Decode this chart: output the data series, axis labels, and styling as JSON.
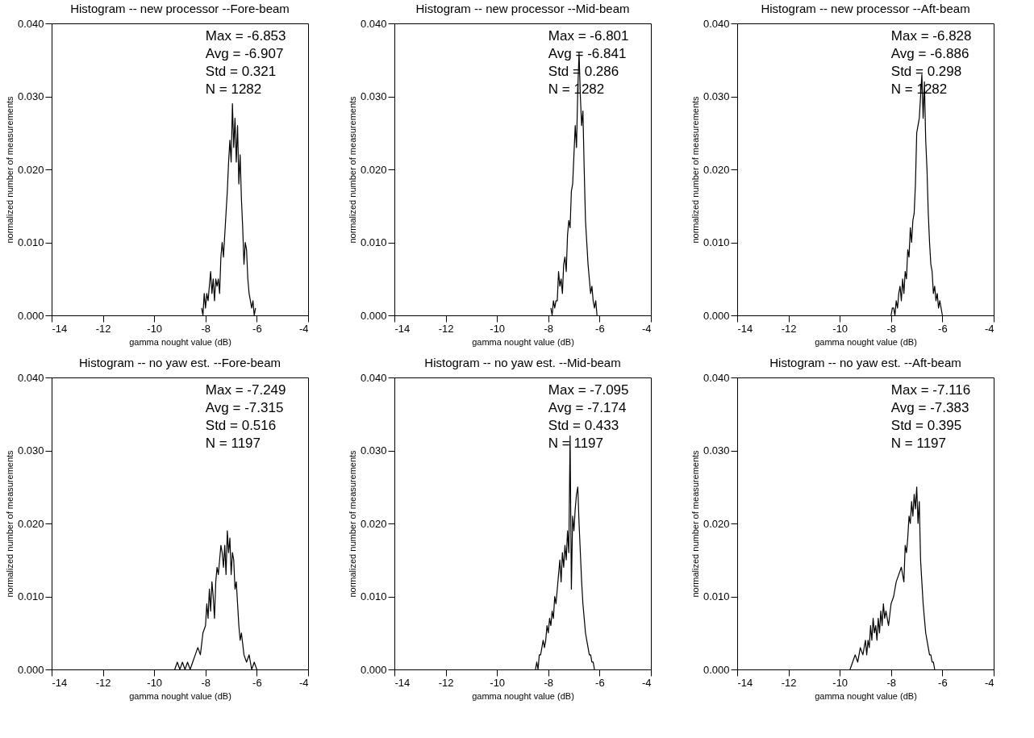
{
  "chart_data": [
    {
      "type": "line",
      "title": "Histogram -- new processor --Fore-beam",
      "xlabel": "gamma nought value (dB)",
      "ylabel": "normalized number of measurements",
      "annotations": [
        "Max =    -6.853",
        "Avg =    -6.907",
        "Std =     0.321",
        "N    =   1282"
      ],
      "xlim": [
        -14,
        -4
      ],
      "xticks": [
        -14,
        -12,
        -10,
        -8,
        -6,
        -4
      ],
      "ylim": [
        0,
        0.04
      ],
      "yticks": [
        {
          "value": 0,
          "label": "0.000"
        },
        {
          "value": 0.01,
          "label": "0.010"
        },
        {
          "value": 0.02,
          "label": "0.020"
        },
        {
          "value": 0.03,
          "label": "0.030"
        },
        {
          "value": 0.04,
          "label": "0.040"
        }
      ],
      "grid": false,
      "line_style": "solid",
      "marker": "none",
      "series": [
        {
          "color": "#000000",
          "x": [
            -8.15,
            -8.1,
            -8.05,
            -8.0,
            -7.95,
            -7.9,
            -7.85,
            -7.8,
            -7.75,
            -7.7,
            -7.65,
            -7.6,
            -7.55,
            -7.5,
            -7.45,
            -7.4,
            -7.35,
            -7.3,
            -7.25,
            -7.2,
            -7.15,
            -7.1,
            -7.05,
            -7.0,
            -6.95,
            -6.9,
            -6.85,
            -6.8,
            -6.75,
            -6.7,
            -6.65,
            -6.6,
            -6.55,
            -6.5,
            -6.45,
            -6.4,
            -6.35,
            -6.3,
            -6.25,
            -6.2,
            -6.15,
            -6.1,
            -6.05
          ],
          "values": [
            0.001,
            0.0,
            0.003,
            0.001,
            0.003,
            0.002,
            0.004,
            0.006,
            0.003,
            0.005,
            0.002,
            0.005,
            0.004,
            0.005,
            0.003,
            0.008,
            0.01,
            0.008,
            0.011,
            0.014,
            0.017,
            0.021,
            0.024,
            0.021,
            0.029,
            0.023,
            0.027,
            0.021,
            0.026,
            0.018,
            0.022,
            0.016,
            0.012,
            0.007,
            0.01,
            0.009,
            0.005,
            0.003,
            0.002,
            0.001,
            0.002,
            0.0,
            0.001
          ]
        }
      ]
    },
    {
      "type": "line",
      "title": "Histogram -- new processor --Mid-beam",
      "xlabel": "gamma nought value (dB)",
      "ylabel": "normalized number of measurements",
      "annotations": [
        "Max =    -6.801",
        "Avg =    -6.841",
        "Std =     0.286",
        "N    =   1282"
      ],
      "xlim": [
        -14,
        -4
      ],
      "xticks": [
        -14,
        -12,
        -10,
        -8,
        -6,
        -4
      ],
      "ylim": [
        0,
        0.04
      ],
      "yticks": [
        {
          "value": 0,
          "label": "0.000"
        },
        {
          "value": 0.01,
          "label": "0.010"
        },
        {
          "value": 0.02,
          "label": "0.020"
        },
        {
          "value": 0.03,
          "label": "0.030"
        },
        {
          "value": 0.04,
          "label": "0.040"
        }
      ],
      "grid": false,
      "line_style": "solid",
      "marker": "none",
      "series": [
        {
          "color": "#000000",
          "x": [
            -7.9,
            -7.85,
            -7.8,
            -7.75,
            -7.7,
            -7.65,
            -7.6,
            -7.55,
            -7.5,
            -7.45,
            -7.4,
            -7.35,
            -7.3,
            -7.25,
            -7.2,
            -7.15,
            -7.1,
            -7.05,
            -7.0,
            -6.95,
            -6.9,
            -6.85,
            -6.8,
            -6.75,
            -6.7,
            -6.65,
            -6.6,
            -6.55,
            -6.5,
            -6.45,
            -6.4,
            -6.35,
            -6.3,
            -6.25,
            -6.2,
            -6.15,
            -6.1
          ],
          "values": [
            0.001,
            0.0,
            0.002,
            0.001,
            0.002,
            0.002,
            0.006,
            0.004,
            0.005,
            0.003,
            0.007,
            0.008,
            0.006,
            0.011,
            0.013,
            0.012,
            0.017,
            0.018,
            0.022,
            0.026,
            0.023,
            0.031,
            0.036,
            0.03,
            0.026,
            0.028,
            0.02,
            0.013,
            0.01,
            0.007,
            0.005,
            0.003,
            0.004,
            0.002,
            0.001,
            0.002,
            0.0
          ]
        }
      ]
    },
    {
      "type": "line",
      "title": "Histogram -- new processor --Aft-beam",
      "xlabel": "gamma nought value (dB)",
      "ylabel": "normalized number of measurements",
      "annotations": [
        "Max =    -6.828",
        "Avg =    -6.886",
        "Std =     0.298",
        "N    =   1282"
      ],
      "xlim": [
        -14,
        -4
      ],
      "xticks": [
        -14,
        -12,
        -10,
        -8,
        -6,
        -4
      ],
      "ylim": [
        0,
        0.04
      ],
      "yticks": [
        {
          "value": 0,
          "label": "0.000"
        },
        {
          "value": 0.01,
          "label": "0.010"
        },
        {
          "value": 0.02,
          "label": "0.020"
        },
        {
          "value": 0.03,
          "label": "0.030"
        },
        {
          "value": 0.04,
          "label": "0.040"
        }
      ],
      "grid": false,
      "line_style": "solid",
      "marker": "none",
      "series": [
        {
          "color": "#000000",
          "x": [
            -8.0,
            -7.95,
            -7.9,
            -7.85,
            -7.8,
            -7.75,
            -7.7,
            -7.65,
            -7.6,
            -7.55,
            -7.5,
            -7.45,
            -7.4,
            -7.35,
            -7.3,
            -7.25,
            -7.2,
            -7.15,
            -7.1,
            -7.05,
            -7.0,
            -6.95,
            -6.9,
            -6.85,
            -6.8,
            -6.75,
            -6.7,
            -6.65,
            -6.6,
            -6.55,
            -6.5,
            -6.45,
            -6.4,
            -6.35,
            -6.3,
            -6.25,
            -6.2,
            -6.15,
            -6.1,
            -6.05,
            -6.0
          ],
          "values": [
            0.0,
            0.001,
            0.001,
            0.0,
            0.002,
            0.001,
            0.003,
            0.004,
            0.002,
            0.005,
            0.003,
            0.006,
            0.005,
            0.009,
            0.008,
            0.012,
            0.01,
            0.013,
            0.014,
            0.018,
            0.025,
            0.026,
            0.027,
            0.03,
            0.033,
            0.027,
            0.032,
            0.024,
            0.02,
            0.014,
            0.01,
            0.007,
            0.006,
            0.003,
            0.004,
            0.002,
            0.003,
            0.001,
            0.002,
            0.001,
            0.0
          ]
        }
      ]
    },
    {
      "type": "line",
      "title": "Histogram -- no yaw est. --Fore-beam",
      "xlabel": "gamma nought value (dB)",
      "ylabel": "normalized number of measurements",
      "annotations": [
        "Max =    -7.249",
        "Avg =    -7.315",
        "Std =     0.516",
        "N    =   1197"
      ],
      "xlim": [
        -14,
        -4
      ],
      "xticks": [
        -14,
        -12,
        -10,
        -8,
        -6,
        -4
      ],
      "ylim": [
        0,
        0.04
      ],
      "yticks": [
        {
          "value": 0,
          "label": "0.000"
        },
        {
          "value": 0.01,
          "label": "0.010"
        },
        {
          "value": 0.02,
          "label": "0.020"
        },
        {
          "value": 0.03,
          "label": "0.030"
        },
        {
          "value": 0.04,
          "label": "0.040"
        }
      ],
      "grid": false,
      "line_style": "solid",
      "marker": "none",
      "series": [
        {
          "color": "#000000",
          "x": [
            -9.2,
            -9.1,
            -9.0,
            -8.9,
            -8.8,
            -8.7,
            -8.6,
            -8.5,
            -8.4,
            -8.3,
            -8.2,
            -8.1,
            -8.0,
            -7.95,
            -7.9,
            -7.85,
            -7.8,
            -7.75,
            -7.7,
            -7.65,
            -7.6,
            -7.55,
            -7.5,
            -7.45,
            -7.4,
            -7.35,
            -7.3,
            -7.25,
            -7.2,
            -7.15,
            -7.1,
            -7.05,
            -7.0,
            -6.95,
            -6.9,
            -6.85,
            -6.8,
            -6.75,
            -6.7,
            -6.65,
            -6.6,
            -6.5,
            -6.4,
            -6.3,
            -6.2,
            -6.1,
            -6.0
          ],
          "values": [
            0.0,
            0.001,
            0.0,
            0.001,
            0.0,
            0.001,
            0.0,
            0.001,
            0.002,
            0.003,
            0.002,
            0.005,
            0.006,
            0.009,
            0.007,
            0.011,
            0.008,
            0.012,
            0.01,
            0.007,
            0.012,
            0.014,
            0.013,
            0.015,
            0.017,
            0.016,
            0.014,
            0.017,
            0.013,
            0.019,
            0.016,
            0.018,
            0.013,
            0.016,
            0.015,
            0.011,
            0.012,
            0.009,
            0.006,
            0.004,
            0.005,
            0.002,
            0.001,
            0.002,
            0.0,
            0.001,
            0.0
          ]
        }
      ]
    },
    {
      "type": "line",
      "title": "Histogram -- no yaw est. --Mid-beam",
      "xlabel": "gamma nought value (dB)",
      "ylabel": "normalized number of measurements",
      "annotations": [
        "Max =    -7.095",
        "Avg =    -7.174",
        "Std =     0.433",
        "N    =   1197"
      ],
      "xlim": [
        -14,
        -4
      ],
      "xticks": [
        -14,
        -12,
        -10,
        -8,
        -6,
        -4
      ],
      "ylim": [
        0,
        0.04
      ],
      "yticks": [
        {
          "value": 0,
          "label": "0.000"
        },
        {
          "value": 0.01,
          "label": "0.010"
        },
        {
          "value": 0.02,
          "label": "0.020"
        },
        {
          "value": 0.03,
          "label": "0.030"
        },
        {
          "value": 0.04,
          "label": "0.040"
        }
      ],
      "grid": false,
      "line_style": "solid",
      "marker": "none",
      "series": [
        {
          "color": "#000000",
          "x": [
            -8.5,
            -8.45,
            -8.4,
            -8.35,
            -8.3,
            -8.25,
            -8.2,
            -8.15,
            -8.1,
            -8.05,
            -8.0,
            -7.95,
            -7.9,
            -7.85,
            -7.8,
            -7.75,
            -7.7,
            -7.65,
            -7.6,
            -7.55,
            -7.5,
            -7.45,
            -7.4,
            -7.35,
            -7.3,
            -7.25,
            -7.2,
            -7.15,
            -7.1,
            -7.05,
            -7.0,
            -6.95,
            -6.9,
            -6.85,
            -6.8,
            -6.75,
            -6.7,
            -6.65,
            -6.6,
            -6.55,
            -6.5,
            -6.45,
            -6.4,
            -6.35,
            -6.3,
            -6.25,
            -6.2
          ],
          "values": [
            0.0,
            0.001,
            0.0,
            0.002,
            0.002,
            0.003,
            0.004,
            0.003,
            0.004,
            0.006,
            0.005,
            0.007,
            0.006,
            0.008,
            0.007,
            0.01,
            0.009,
            0.011,
            0.013,
            0.015,
            0.012,
            0.016,
            0.014,
            0.017,
            0.015,
            0.019,
            0.016,
            0.032,
            0.011,
            0.021,
            0.019,
            0.022,
            0.024,
            0.025,
            0.02,
            0.016,
            0.012,
            0.009,
            0.007,
            0.005,
            0.004,
            0.003,
            0.002,
            0.002,
            0.001,
            0.001,
            0.0
          ]
        }
      ]
    },
    {
      "type": "line",
      "title": "Histogram -- no yaw est. --Aft-beam",
      "xlabel": "gamma nought value (dB)",
      "ylabel": "normalized number of measurements",
      "annotations": [
        "Max =    -7.116",
        "Avg =    -7.383",
        "Std =     0.395",
        "N    =   1197"
      ],
      "xlim": [
        -14,
        -4
      ],
      "xticks": [
        -14,
        -12,
        -10,
        -8,
        -6,
        -4
      ],
      "ylim": [
        0,
        0.04
      ],
      "yticks": [
        {
          "value": 0,
          "label": "0.000"
        },
        {
          "value": 0.01,
          "label": "0.010"
        },
        {
          "value": 0.02,
          "label": "0.020"
        },
        {
          "value": 0.03,
          "label": "0.030"
        },
        {
          "value": 0.04,
          "label": "0.040"
        }
      ],
      "grid": false,
      "line_style": "solid",
      "marker": "none",
      "series": [
        {
          "color": "#000000",
          "x": [
            -9.6,
            -9.5,
            -9.4,
            -9.3,
            -9.2,
            -9.1,
            -9.0,
            -8.95,
            -8.9,
            -8.85,
            -8.8,
            -8.75,
            -8.7,
            -8.65,
            -8.6,
            -8.55,
            -8.5,
            -8.45,
            -8.4,
            -8.35,
            -8.3,
            -8.25,
            -8.2,
            -8.1,
            -8.0,
            -7.9,
            -7.8,
            -7.7,
            -7.6,
            -7.5,
            -7.45,
            -7.4,
            -7.35,
            -7.3,
            -7.25,
            -7.2,
            -7.15,
            -7.1,
            -7.05,
            -7.0,
            -6.95,
            -6.9,
            -6.85,
            -6.8,
            -6.75,
            -6.7,
            -6.65,
            -6.6,
            -6.55,
            -6.5,
            -6.45,
            -6.4,
            -6.35,
            -6.3
          ],
          "values": [
            0.0,
            0.001,
            0.002,
            0.001,
            0.003,
            0.002,
            0.004,
            0.002,
            0.004,
            0.003,
            0.006,
            0.004,
            0.007,
            0.005,
            0.006,
            0.004,
            0.007,
            0.005,
            0.008,
            0.006,
            0.009,
            0.007,
            0.008,
            0.006,
            0.009,
            0.01,
            0.012,
            0.013,
            0.014,
            0.012,
            0.017,
            0.016,
            0.018,
            0.021,
            0.02,
            0.023,
            0.021,
            0.024,
            0.022,
            0.025,
            0.02,
            0.023,
            0.015,
            0.012,
            0.009,
            0.007,
            0.005,
            0.004,
            0.003,
            0.002,
            0.002,
            0.001,
            0.001,
            0.0
          ]
        }
      ]
    }
  ]
}
